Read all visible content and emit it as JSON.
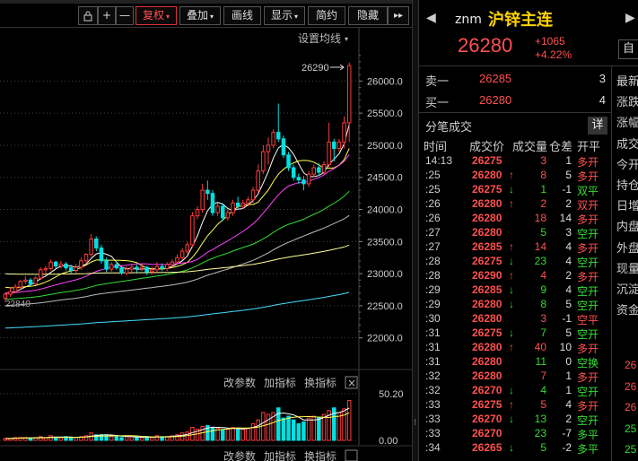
{
  "toolbar": {
    "buttons": [
      {
        "name": "fuquan",
        "label": "复权"
      },
      {
        "name": "diejia",
        "label": "叠加"
      },
      {
        "name": "huaxian",
        "label": "画线"
      },
      {
        "name": "xianshi",
        "label": "显示"
      },
      {
        "name": "jianyue",
        "label": "简约"
      },
      {
        "name": "yincang",
        "label": "隐藏"
      }
    ],
    "zoom_in": "+",
    "zoom_out": "—",
    "more": "▸▸"
  },
  "chart": {
    "ma_settings_label": "设置均线",
    "high_marker": "26290",
    "low_marker": "22840",
    "price_axis": [
      "26000.0",
      "25500.0",
      "25000.0",
      "24500.0",
      "24000.0",
      "23500.0",
      "23000.0",
      "22500.0",
      "22000.0"
    ],
    "sub_labels": [
      "改参数",
      "加指标",
      "换指标"
    ],
    "sub_axis": [
      "50.20",
      "0.00"
    ],
    "close_symbol": "×"
  },
  "chart_data": {
    "type": "candlestick",
    "price_range": [
      21800,
      26550
    ],
    "candles": [
      [
        22620,
        22680,
        22560,
        22700
      ],
      [
        22680,
        22720,
        22640,
        22780
      ],
      [
        22720,
        22790,
        22700,
        22840
      ],
      [
        22790,
        22880,
        22760,
        22900
      ],
      [
        22880,
        22900,
        22840,
        22960
      ],
      [
        22900,
        22840,
        22800,
        22930
      ],
      [
        22840,
        22930,
        22820,
        22960
      ],
      [
        22930,
        23060,
        22900,
        23100
      ],
      [
        23060,
        23080,
        23000,
        23120
      ],
      [
        23080,
        23180,
        23050,
        23220
      ],
      [
        23180,
        23120,
        23080,
        23200
      ],
      [
        23120,
        23150,
        23080,
        23200
      ],
      [
        23150,
        23090,
        23050,
        23180
      ],
      [
        23090,
        23050,
        23000,
        23140
      ],
      [
        23050,
        23100,
        23010,
        23150
      ],
      [
        23100,
        23200,
        23060,
        23250
      ],
      [
        23200,
        23300,
        23150,
        23320
      ],
      [
        23300,
        23540,
        23260,
        23620
      ],
      [
        23540,
        23400,
        23350,
        23580
      ],
      [
        23400,
        23200,
        23150,
        23450
      ],
      [
        23200,
        23070,
        23020,
        23250
      ],
      [
        23070,
        23140,
        23030,
        23180
      ],
      [
        23140,
        23090,
        23060,
        23190
      ],
      [
        23090,
        23010,
        22980,
        23130
      ],
      [
        23010,
        23070,
        22970,
        23110
      ],
      [
        23070,
        23100,
        23020,
        23140
      ],
      [
        23100,
        23080,
        23020,
        23140
      ],
      [
        23080,
        23100,
        23040,
        23150
      ],
      [
        23100,
        23030,
        22980,
        23120
      ],
      [
        23030,
        23060,
        22990,
        23110
      ],
      [
        23060,
        23110,
        23020,
        23180
      ],
      [
        23110,
        23080,
        23040,
        23160
      ],
      [
        23080,
        23140,
        23040,
        23180
      ],
      [
        23140,
        23180,
        23100,
        23220
      ],
      [
        23180,
        23250,
        23140,
        23300
      ],
      [
        23250,
        23350,
        23210,
        23400
      ],
      [
        23350,
        23450,
        23300,
        23500
      ],
      [
        23450,
        23900,
        23420,
        23960
      ],
      [
        23900,
        24000,
        23850,
        24050
      ],
      [
        24000,
        24300,
        23950,
        24400
      ],
      [
        24300,
        24250,
        24150,
        24450
      ],
      [
        24250,
        23950,
        23900,
        24300
      ],
      [
        23950,
        24050,
        23900,
        24100
      ],
      [
        24050,
        23870,
        23820,
        24100
      ],
      [
        23870,
        23950,
        23830,
        24000
      ],
      [
        23950,
        24100,
        23900,
        24150
      ],
      [
        24100,
        24050,
        24000,
        24200
      ],
      [
        24050,
        24100,
        24010,
        24150
      ],
      [
        24100,
        24150,
        24050,
        24200
      ],
      [
        24150,
        24300,
        24100,
        24350
      ],
      [
        24300,
        24600,
        24250,
        24700
      ],
      [
        24600,
        24900,
        24550,
        25000
      ],
      [
        24900,
        25000,
        24700,
        25120
      ],
      [
        25000,
        25200,
        24950,
        25250
      ],
      [
        25200,
        25100,
        25050,
        25650
      ],
      [
        25100,
        24850,
        24800,
        25150
      ],
      [
        24850,
        24650,
        24600,
        24900
      ],
      [
        24650,
        24500,
        24450,
        24700
      ],
      [
        24500,
        24460,
        24400,
        24560
      ],
      [
        24460,
        24400,
        24300,
        24520
      ],
      [
        24400,
        24550,
        24350,
        24600
      ],
      [
        24550,
        24650,
        24500,
        24700
      ],
      [
        24650,
        24580,
        24520,
        24720
      ],
      [
        24580,
        24700,
        24550,
        24750
      ],
      [
        24700,
        25050,
        24650,
        25350
      ],
      [
        25050,
        24950,
        24750,
        25100
      ],
      [
        24950,
        25050,
        24900,
        25100
      ],
      [
        25050,
        25350,
        24950,
        25450
      ],
      [
        25350,
        26240,
        25050,
        26290
      ]
    ],
    "volume_range": [
      0,
      50.2
    ],
    "volumes": [
      2,
      2,
      3,
      3,
      3,
      2,
      3,
      4,
      3,
      5,
      3,
      3,
      4,
      3,
      3,
      4,
      5,
      8,
      6,
      6,
      5,
      4,
      5,
      3,
      4,
      4,
      3,
      3,
      4,
      3,
      5,
      4,
      4,
      5,
      6,
      8,
      9,
      14,
      12,
      15,
      16,
      14,
      13,
      11,
      12,
      14,
      13,
      12,
      13,
      18,
      22,
      30,
      28,
      30,
      35,
      24,
      26,
      22,
      18,
      20,
      24,
      26,
      25,
      28,
      32,
      35,
      30,
      34,
      43
    ],
    "volume_up": [
      true,
      true,
      true,
      true,
      true,
      false,
      true,
      true,
      true,
      true,
      false,
      true,
      false,
      false,
      true,
      true,
      true,
      true,
      false,
      false,
      false,
      true,
      false,
      false,
      true,
      true,
      false,
      true,
      false,
      true,
      true,
      false,
      true,
      true,
      true,
      true,
      true,
      true,
      true,
      true,
      false,
      false,
      true,
      false,
      true,
      true,
      false,
      true,
      true,
      true,
      true,
      true,
      true,
      true,
      false,
      false,
      false,
      false,
      false,
      false,
      true,
      true,
      false,
      true,
      true,
      false,
      true,
      true,
      true
    ]
  },
  "quote": {
    "code": "znm",
    "name": "沪锌主连",
    "last": "26280",
    "change": "+1065",
    "change_pct": "+4.22%",
    "side_button": "自",
    "ask": {
      "label": "卖一",
      "price": "26285",
      "vol": "3"
    },
    "bid": {
      "label": "买一",
      "price": "26280",
      "vol": "4"
    },
    "trades_title": "分笔成交",
    "detail_button": "详",
    "headers": [
      "时间",
      "成交价",
      "成交量",
      "仓差",
      "开平"
    ],
    "trades": [
      {
        "t": "14:13",
        "p": "26275",
        "d": "",
        "v": "3",
        "vc": "red",
        "oi": "1",
        "n": "多开",
        "nc": "red"
      },
      {
        "t": ":25",
        "p": "26280",
        "d": "↑",
        "dc": "red",
        "v": "8",
        "vc": "red",
        "oi": "5",
        "n": "多开",
        "nc": "red"
      },
      {
        "t": ":25",
        "p": "26275",
        "d": "↓",
        "dc": "green",
        "v": "1",
        "vc": "green",
        "oi": "-1",
        "n": "双平",
        "nc": "green"
      },
      {
        "t": ":26",
        "p": "26280",
        "d": "↑",
        "dc": "red",
        "v": "2",
        "vc": "red",
        "oi": "2",
        "n": "双开",
        "nc": "red"
      },
      {
        "t": ":26",
        "p": "26280",
        "d": "",
        "v": "18",
        "vc": "red",
        "oi": "14",
        "n": "多开",
        "nc": "red"
      },
      {
        "t": ":27",
        "p": "26280",
        "d": "",
        "v": "5",
        "vc": "green",
        "oi": "3",
        "n": "空开",
        "nc": "green"
      },
      {
        "t": ":27",
        "p": "26285",
        "d": "↑",
        "dc": "red",
        "v": "14",
        "vc": "red",
        "oi": "4",
        "n": "多开",
        "nc": "red"
      },
      {
        "t": ":28",
        "p": "26275",
        "d": "↓",
        "dc": "green",
        "v": "23",
        "vc": "green",
        "oi": "4",
        "n": "空开",
        "nc": "green"
      },
      {
        "t": ":28",
        "p": "26290",
        "d": "↑",
        "dc": "red",
        "v": "4",
        "vc": "red",
        "oi": "2",
        "n": "多开",
        "nc": "red"
      },
      {
        "t": ":29",
        "p": "26285",
        "d": "↓",
        "dc": "green",
        "v": "9",
        "vc": "green",
        "oi": "4",
        "n": "空开",
        "nc": "green"
      },
      {
        "t": ":29",
        "p": "26280",
        "d": "↓",
        "dc": "green",
        "v": "8",
        "vc": "green",
        "oi": "5",
        "n": "空开",
        "nc": "green"
      },
      {
        "t": ":30",
        "p": "26280",
        "d": "",
        "v": "3",
        "vc": "red",
        "oi": "-1",
        "n": "空平",
        "nc": "red"
      },
      {
        "t": ":31",
        "p": "26275",
        "d": "↓",
        "dc": "green",
        "v": "7",
        "vc": "green",
        "oi": "5",
        "n": "空开",
        "nc": "green"
      },
      {
        "t": ":31",
        "p": "26280",
        "d": "↑",
        "dc": "red",
        "v": "40",
        "vc": "red",
        "oi": "10",
        "n": "多开",
        "nc": "red"
      },
      {
        "t": ":31",
        "p": "26280",
        "d": "",
        "v": "11",
        "vc": "green",
        "oi": "0",
        "n": "空换",
        "nc": "green"
      },
      {
        "t": ":32",
        "p": "26280",
        "d": "",
        "v": "7",
        "vc": "red",
        "oi": "1",
        "n": "多开",
        "nc": "red"
      },
      {
        "t": ":32",
        "p": "26270",
        "d": "↓",
        "dc": "green",
        "v": "4",
        "vc": "green",
        "oi": "1",
        "n": "空开",
        "nc": "green"
      },
      {
        "t": ":33",
        "p": "26275",
        "d": "↑",
        "dc": "red",
        "v": "5",
        "vc": "red",
        "oi": "4",
        "n": "多开",
        "nc": "red"
      },
      {
        "t": ":33",
        "p": "26270",
        "d": "↓",
        "dc": "green",
        "v": "13",
        "vc": "green",
        "oi": "2",
        "n": "空开",
        "nc": "green"
      },
      {
        "t": ":33",
        "p": "26270",
        "d": "",
        "v": "23",
        "vc": "green",
        "oi": "-7",
        "n": "多平",
        "nc": "green"
      },
      {
        "t": ":34",
        "p": "26265",
        "d": "↓",
        "dc": "green",
        "v": "5",
        "vc": "green",
        "oi": "-2",
        "n": "多平",
        "nc": "green"
      }
    ],
    "right_labels": [
      "最新",
      "涨跌",
      "涨幅",
      "成交",
      "今开",
      "持仓",
      "日增",
      "内盘",
      "外盘",
      "现量",
      "沉淀",
      "资金"
    ],
    "right_nums": [
      {
        "v": "26",
        "c": "red"
      },
      {
        "v": "26",
        "c": "red"
      },
      {
        "v": "26",
        "c": "red"
      },
      {
        "v": "25",
        "c": "green"
      },
      {
        "v": "25",
        "c": "green"
      },
      {
        "v": "25",
        "c": "green"
      }
    ]
  }
}
